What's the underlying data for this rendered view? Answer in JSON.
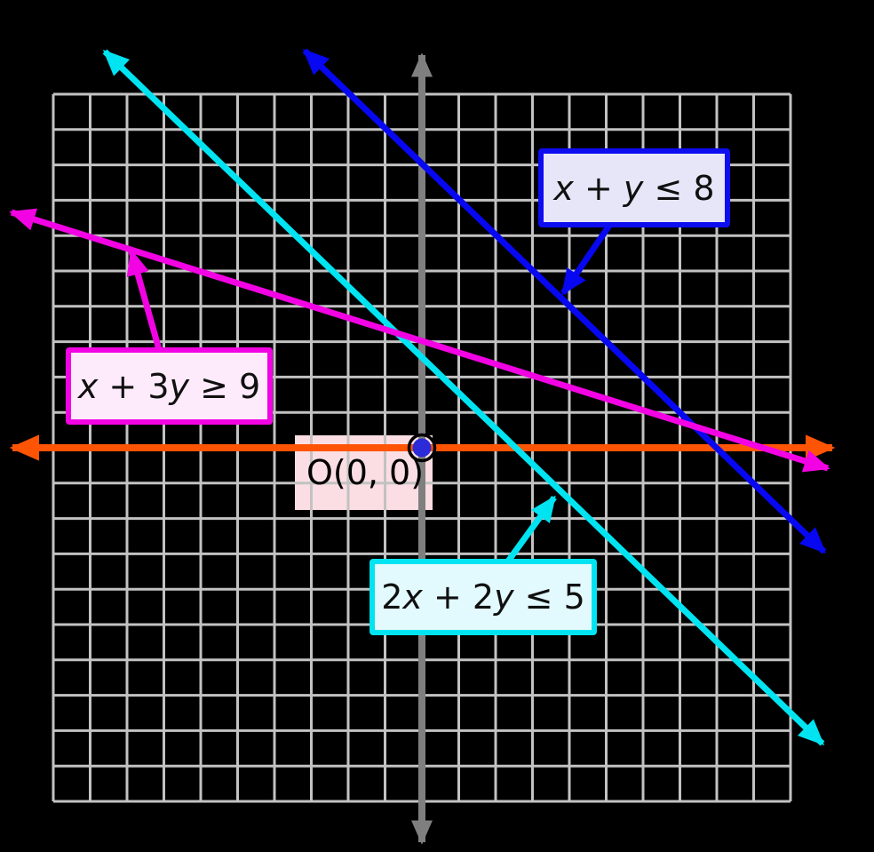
{
  "labels": {
    "blue": {
      "c1": "",
      "v1": "x",
      "plus": " + ",
      "c2": "",
      "v2": "y",
      "rel": " ≤ ",
      "val": "8"
    },
    "magenta": {
      "c1": "",
      "v1": "x",
      "plus": " + ",
      "c2": "3",
      "v2": "y",
      "rel": " ≥ ",
      "val": "9"
    },
    "cyan": {
      "c1": "2",
      "v1": "x",
      "plus": " + ",
      "c2": "2",
      "v2": "y",
      "rel": " ≤ ",
      "val": "5"
    },
    "origin": {
      "text": "O(0, 0)"
    }
  },
  "colors": {
    "background": "#000000",
    "grid": "#c2c2c2",
    "axis_gray": "#7f7f7f",
    "orange": "#ff5404",
    "blue": "#0707f2",
    "cyan": "#00e4f2",
    "magenta": "#f203e3",
    "origin_dot": "#2b2bd9",
    "origin_ring": "#000000",
    "blue_box_fill": "#e7e6f8",
    "magenta_box_fill": "#fdeafb",
    "cyan_box_fill": "#e2fafd",
    "origin_box_fill": "#fbdee3"
  },
  "chart_data": {
    "type": "line",
    "title": "",
    "x_range": [
      -10,
      10
    ],
    "y_range": [
      -10,
      10
    ],
    "grid": true,
    "grid_step": 1,
    "axis_tick_labels_shown": false,
    "legend": "none",
    "series": [
      {
        "name": "x + y ≤ 8",
        "boundary_equation": "x + y = 8",
        "color_key": "blue",
        "x_intercept": 8,
        "y_intercept": 8,
        "points_math": [
          [
            -3.2,
            11.2
          ],
          [
            10.9,
            -2.9
          ]
        ]
      },
      {
        "name": "x + 3y ≥ 9",
        "boundary_equation": "x + 3y = 9",
        "color_key": "magenta",
        "x_intercept": 9,
        "y_intercept": 3,
        "points_math": [
          [
            -11.1,
            6.6
          ],
          [
            11.0,
            -0.6
          ]
        ]
      },
      {
        "name": "2x + 2y ≤ 5",
        "boundary_equation": "2x + 2y = 5",
        "color_key": "cyan",
        "x_intercept": 2.5,
        "y_intercept": 2.5,
        "points_math": [
          [
            -8.7,
            11.2
          ],
          [
            10.9,
            -8.4
          ]
        ]
      },
      {
        "name": "x-axis",
        "color_key": "orange",
        "points_math": [
          [
            -11.2,
            0
          ],
          [
            11.2,
            0
          ]
        ]
      },
      {
        "name": "y-axis",
        "color_key": "axis_gray",
        "points_math": [
          [
            0,
            11.2
          ],
          [
            0,
            -11.2
          ]
        ]
      }
    ],
    "annotations": [
      {
        "text": "O(0, 0)",
        "point": [
          0,
          0
        ],
        "marker": "filled-dot-with-open-ring"
      }
    ]
  }
}
